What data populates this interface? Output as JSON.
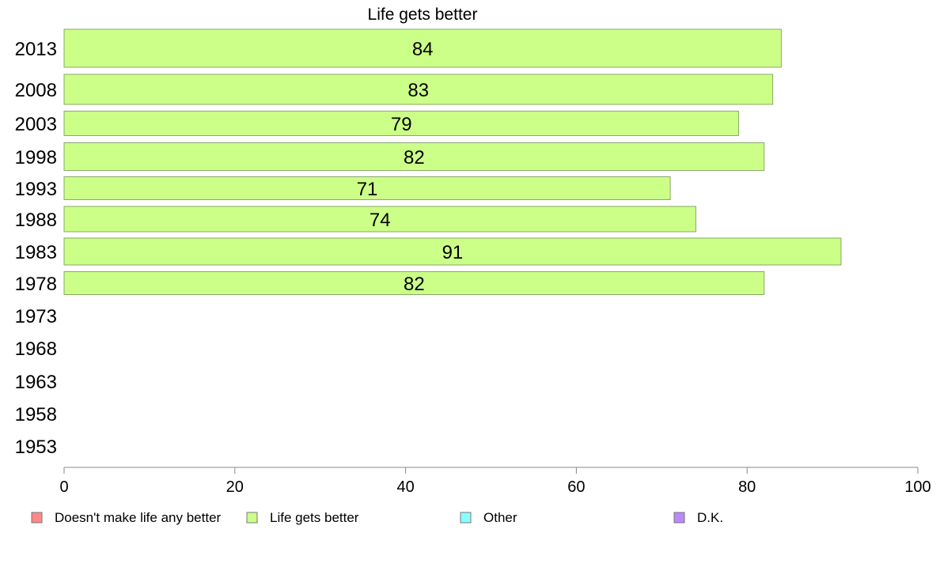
{
  "chart_data": {
    "type": "bar",
    "orientation": "horizontal",
    "title": "Life gets better",
    "categories": [
      "2013",
      "2008",
      "2003",
      "1998",
      "1993",
      "1988",
      "1983",
      "1978",
      "1973",
      "1968",
      "1963",
      "1958",
      "1953"
    ],
    "series": [
      {
        "name": "Life gets better",
        "color": "#ccff88",
        "values": [
          84,
          83,
          79,
          82,
          71,
          74,
          91,
          82,
          null,
          null,
          null,
          null,
          null
        ]
      }
    ],
    "xlim": [
      0,
      100
    ],
    "x_ticks": [
      0,
      20,
      40,
      60,
      80,
      100
    ],
    "xlabel": "",
    "ylabel": "",
    "grid": false,
    "legend": {
      "placement": "bottom",
      "entries": [
        {
          "label": "Doesn't make life any better",
          "color": "#ff8888"
        },
        {
          "label": "Life gets better",
          "color": "#ccff88"
        },
        {
          "label": "Other",
          "color": "#88ffff"
        },
        {
          "label": "D.K.",
          "color": "#bb88ff"
        }
      ]
    },
    "bar_border_color": "#88aa66",
    "axis_color": "#888888"
  }
}
